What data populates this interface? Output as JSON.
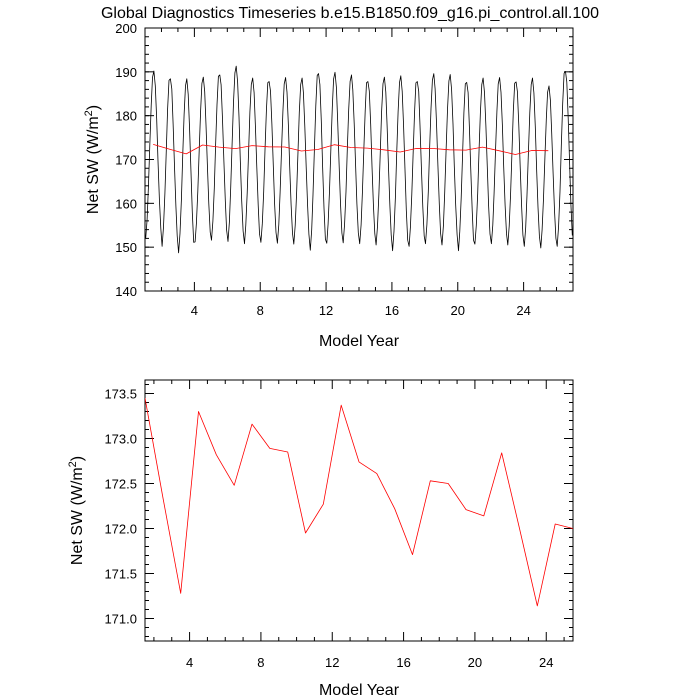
{
  "figure_title": "Global Diagnostics Timeseries b.e15.B1850.f09_g16.pi_control.all.100",
  "chart_data": [
    {
      "type": "line",
      "title": "Global Diagnostics Timeseries b.e15.B1850.f09_g16.pi_control.all.100",
      "xlabel": "Model Year",
      "ylabel": "Net SW (W/m",
      "ylabel_sup": "2",
      "ylabel_close": ")",
      "xlim": [
        1,
        27
      ],
      "ylim": [
        140,
        200
      ],
      "xticks": [
        4,
        8,
        12,
        16,
        20,
        24
      ],
      "yticks": [
        140,
        150,
        160,
        170,
        180,
        190,
        200
      ],
      "ytick_labels": [
        "140",
        "150",
        "160",
        "170",
        "180",
        "190",
        "200"
      ],
      "series": [
        {
          "color": "#000000",
          "kind": "monthly",
          "years": 26,
          "monthly_pattern": [
            151.5,
            155.8,
            163.2,
            172.8,
            181.9,
            188.3,
            189.8,
            186.4,
            178.7,
            169.2,
            160.4,
            153.8
          ],
          "annual_max": [
            190.2,
            189.6,
            188.4,
            188.8,
            190.5,
            191.3,
            188.6,
            189.0,
            188.7,
            188.6,
            190.8,
            189.9,
            189.3,
            189.0,
            188.8,
            189.1,
            189.0,
            189.6,
            189.4,
            188.8,
            188.6,
            188.7,
            188.9,
            188.6,
            186.8,
            191.3
          ],
          "annual_min": [
            152.0,
            150.2,
            148.7,
            151.2,
            151.6,
            151.3,
            150.8,
            151.1,
            150.9,
            150.7,
            149.3,
            150.9,
            151.0,
            150.8,
            150.5,
            149.2,
            150.2,
            150.8,
            150.5,
            149.2,
            150.7,
            150.8,
            150.5,
            150.2,
            149.8,
            150.2
          ]
        },
        {
          "color": "#ff0000",
          "kind": "annual",
          "x": [
            1.5,
            2.5,
            3.5,
            4.5,
            5.5,
            6.5,
            7.5,
            8.5,
            9.5,
            10.5,
            11.5,
            12.5,
            13.5,
            14.5,
            15.5,
            16.5,
            17.5,
            18.5,
            19.5,
            20.5,
            21.5,
            22.5,
            23.5,
            24.5,
            25.5
          ],
          "values": [
            173.45,
            172.35,
            171.28,
            173.3,
            172.82,
            172.48,
            173.16,
            172.89,
            172.85,
            171.95,
            172.27,
            173.37,
            172.74,
            172.61,
            172.22,
            171.71,
            172.53,
            172.5,
            172.21,
            172.14,
            172.84,
            172.0,
            171.14,
            172.05,
            172.0
          ]
        }
      ]
    },
    {
      "type": "line",
      "xlabel": "Model Year",
      "ylabel": "Net SW (W/m",
      "ylabel_sup": "2",
      "ylabel_close": ")",
      "xlim": [
        1.5,
        25.5
      ],
      "ylim": [
        170.75,
        173.65
      ],
      "xticks": [
        4,
        8,
        12,
        16,
        20,
        24
      ],
      "yticks": [
        171.0,
        171.5,
        172.0,
        172.5,
        173.0,
        173.5
      ],
      "ytick_labels": [
        "171.0",
        "171.5",
        "172.0",
        "172.5",
        "173.0",
        "173.5"
      ],
      "series": [
        {
          "color": "#ff0000",
          "kind": "annual",
          "x": [
            1.5,
            2.5,
            3.5,
            4.5,
            5.5,
            6.5,
            7.5,
            8.5,
            9.5,
            10.5,
            11.5,
            12.5,
            13.5,
            14.5,
            15.5,
            16.5,
            17.5,
            18.5,
            19.5,
            20.5,
            21.5,
            22.5,
            23.5,
            24.5,
            25.5
          ],
          "values": [
            173.45,
            172.35,
            171.28,
            173.3,
            172.82,
            172.48,
            173.16,
            172.89,
            172.85,
            171.95,
            172.27,
            173.37,
            172.74,
            172.61,
            172.22,
            171.71,
            172.53,
            172.5,
            172.21,
            172.14,
            172.84,
            172.0,
            171.14,
            172.05,
            172.0
          ]
        }
      ]
    }
  ]
}
